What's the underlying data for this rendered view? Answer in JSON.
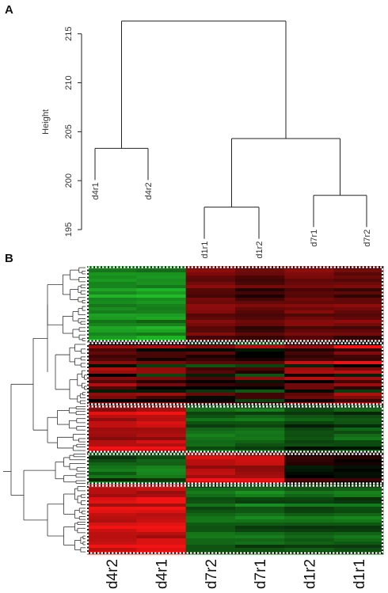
{
  "panels": {
    "a_label": "A",
    "b_label": "B"
  },
  "chart_data": [
    {
      "type": "dendrogram",
      "ylabel": "Height",
      "ylim": [
        195,
        217
      ],
      "yticks": [
        195,
        200,
        205,
        210,
        215
      ],
      "leaves": [
        "d4r1",
        "d4r2",
        "d1r1",
        "d1r2",
        "d7r1",
        "d7r2"
      ],
      "merges": [
        {
          "left": "d4r1",
          "right": "d4r2",
          "height": 203.3
        },
        {
          "left": "d1r1",
          "right": "d1r2",
          "height": 197.3
        },
        {
          "left": "d7r1",
          "right": "d7r2",
          "height": 198.5
        },
        {
          "left": "d1r1+d1r2",
          "right": "d7r1+d7r2",
          "height": 204.3
        },
        {
          "left": "d4r1+d4r2",
          "right": "d1r1+d1r2+d7r1+d7r2",
          "height": 216.3
        }
      ]
    },
    {
      "type": "heatmap",
      "columns": [
        "d4r2",
        "d4r1",
        "d7r2",
        "d7r1",
        "d1r2",
        "d1r1"
      ],
      "color_scale": {
        "low": "#22c22a",
        "mid": "#000000",
        "high": "#f01414"
      },
      "clusters": [
        {
          "rows": 24,
          "values": [
            -0.75,
            -0.75,
            0.45,
            0.35,
            0.45,
            0.4
          ],
          "variability": 0.3
        },
        {
          "rows": 20,
          "values": [
            0.35,
            0.25,
            0.1,
            0.0,
            0.3,
            0.35
          ],
          "variability": 0.85
        },
        {
          "rows": 15,
          "values": [
            0.8,
            0.85,
            -0.45,
            -0.45,
            -0.3,
            -0.35
          ],
          "variability": 0.35
        },
        {
          "rows": 10,
          "values": [
            -0.45,
            -0.5,
            0.8,
            0.8,
            0.1,
            0.05
          ],
          "variability": 0.45
        },
        {
          "rows": 22,
          "values": [
            0.85,
            0.9,
            -0.5,
            -0.5,
            -0.45,
            -0.45
          ],
          "variability": 0.3
        }
      ]
    }
  ]
}
